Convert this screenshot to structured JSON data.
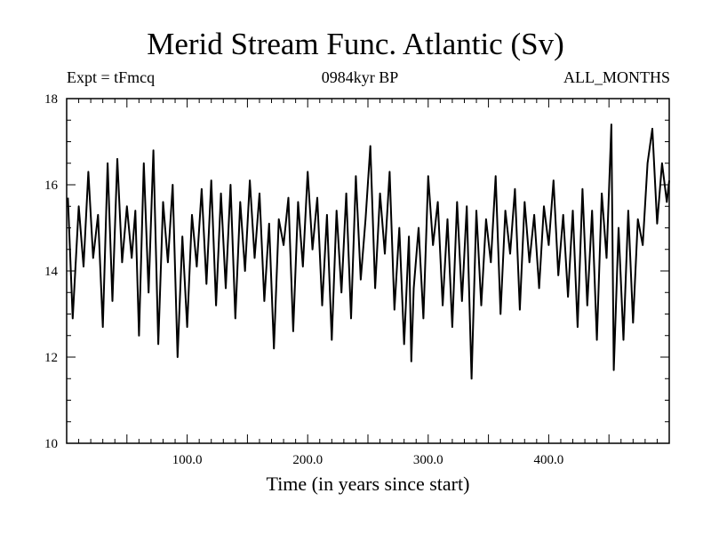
{
  "chart_data": {
    "type": "line",
    "title": "Merid Stream Func. Atlantic (Sv)",
    "subtitle_left": "Expt = tFmcq",
    "subtitle_center": "0984kyr BP",
    "subtitle_right": "ALL_MONTHS",
    "xlabel": "Time (in years since start)",
    "ylabel": "",
    "xlim": [
      0,
      500
    ],
    "ylim": [
      10,
      18
    ],
    "x_ticks": [
      100,
      200,
      300,
      400
    ],
    "x_tick_labels": [
      "100.0",
      "200.0",
      "300.0",
      "400.0"
    ],
    "y_ticks": [
      10,
      12,
      14,
      16,
      18
    ],
    "y_tick_labels": [
      "10",
      "12",
      "14",
      "16",
      "18"
    ],
    "series": [
      {
        "name": "Merid Stream Func. Atlantic",
        "x": [
          1,
          5,
          10,
          14,
          18,
          22,
          26,
          30,
          34,
          38,
          42,
          46,
          50,
          54,
          57,
          60,
          64,
          68,
          72,
          76,
          80,
          84,
          88,
          92,
          96,
          100,
          104,
          108,
          112,
          116,
          120,
          124,
          128,
          132,
          136,
          140,
          144,
          148,
          152,
          156,
          160,
          164,
          168,
          172,
          176,
          180,
          184,
          188,
          192,
          196,
          200,
          204,
          208,
          212,
          216,
          220,
          224,
          228,
          232,
          236,
          240,
          244,
          248,
          252,
          256,
          260,
          264,
          268,
          272,
          276,
          280,
          284,
          286,
          288,
          292,
          296,
          300,
          304,
          308,
          312,
          316,
          320,
          324,
          328,
          332,
          336,
          340,
          344,
          348,
          352,
          356,
          360,
          364,
          368,
          372,
          376,
          380,
          384,
          388,
          392,
          396,
          400,
          404,
          408,
          412,
          416,
          420,
          424,
          428,
          432,
          436,
          440,
          444,
          448,
          452,
          454,
          458,
          462,
          466,
          470,
          474,
          478,
          482,
          486,
          490,
          494,
          498,
          500
        ],
        "values": [
          15.7,
          12.9,
          15.5,
          14.1,
          16.3,
          14.3,
          15.3,
          12.7,
          16.5,
          13.3,
          16.6,
          14.2,
          15.5,
          14.3,
          15.4,
          12.5,
          16.5,
          13.5,
          16.8,
          12.3,
          15.6,
          14.2,
          16.0,
          12.0,
          14.8,
          12.7,
          15.3,
          14.1,
          15.9,
          13.7,
          16.1,
          13.2,
          15.8,
          13.6,
          16.0,
          12.9,
          15.6,
          14.0,
          16.1,
          14.3,
          15.8,
          13.3,
          15.1,
          12.2,
          15.2,
          14.6,
          15.7,
          12.6,
          15.6,
          14.1,
          16.3,
          14.5,
          15.7,
          13.2,
          15.3,
          12.4,
          15.4,
          13.5,
          15.8,
          12.9,
          16.2,
          13.8,
          15.2,
          16.9,
          13.6,
          15.8,
          14.4,
          16.3,
          13.1,
          15.0,
          12.3,
          14.8,
          11.9,
          13.6,
          15.0,
          12.9,
          16.2,
          14.6,
          15.6,
          13.2,
          15.2,
          12.7,
          15.6,
          13.3,
          15.5,
          11.5,
          15.4,
          13.2,
          15.2,
          14.2,
          16.2,
          13.0,
          15.4,
          14.4,
          15.9,
          13.1,
          15.6,
          14.2,
          15.3,
          13.6,
          15.5,
          14.6,
          16.1,
          13.9,
          15.3,
          13.4,
          15.4,
          12.7,
          15.9,
          13.2,
          15.4,
          12.4,
          15.8,
          14.3,
          17.4,
          11.7,
          15.0,
          12.4,
          15.4,
          12.8,
          15.2,
          14.6,
          16.5,
          17.3,
          15.1,
          16.5,
          15.6,
          16.1
        ]
      }
    ]
  }
}
